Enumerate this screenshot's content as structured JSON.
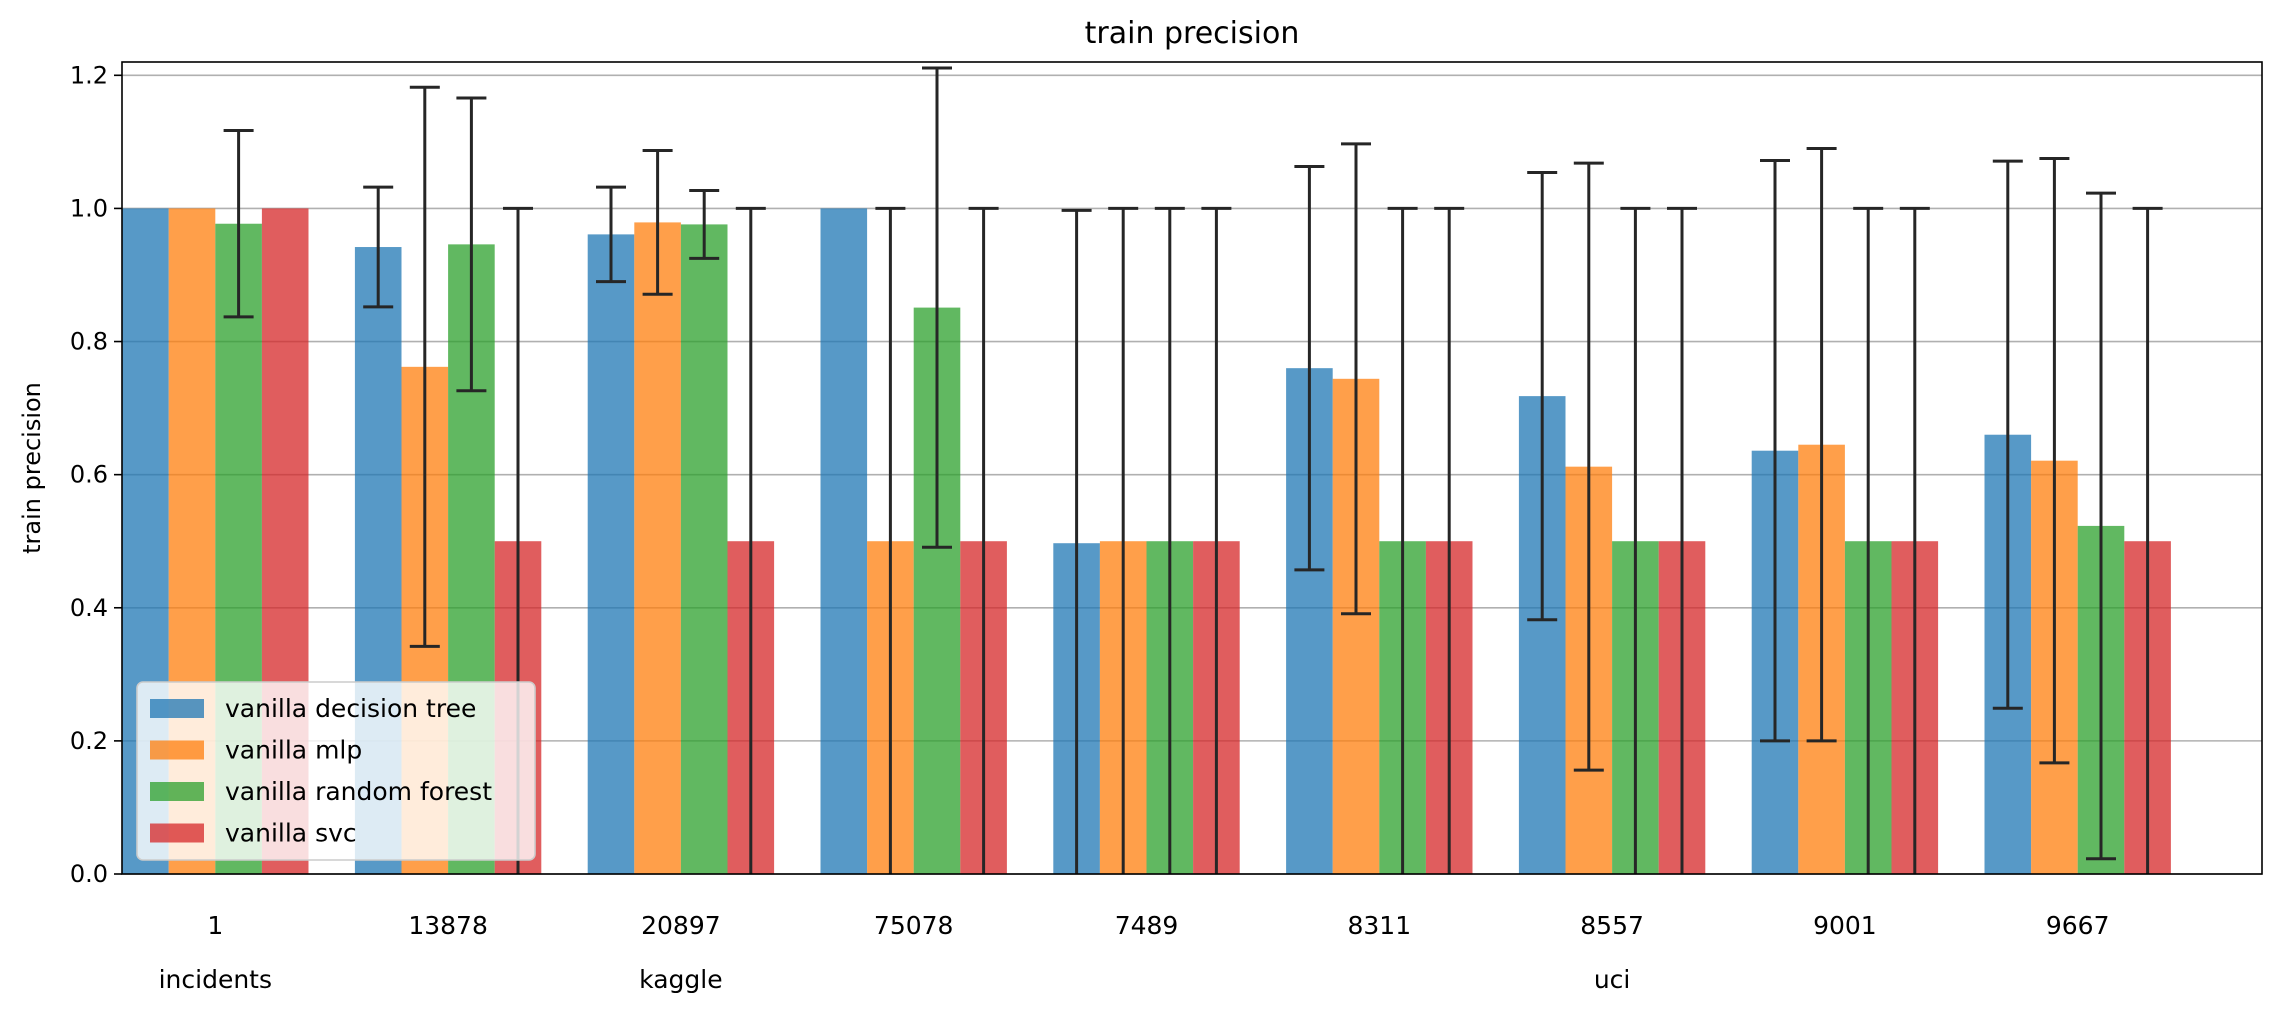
{
  "chart_data": {
    "type": "bar",
    "title": "train precision",
    "ylabel": "train precision",
    "xlabel": "",
    "ylim": [
      0,
      1.22
    ],
    "yticks": [
      "0.0",
      "0.2",
      "0.4",
      "0.6",
      "0.8",
      "1.0",
      "1.2"
    ],
    "grid": "y",
    "legend_position": "lower-left",
    "categories": [
      "1",
      "13878",
      "20897",
      "75078",
      "7489",
      "8311",
      "8557",
      "9001",
      "9667"
    ],
    "groups": [
      {
        "label": "incidents",
        "categories": [
          "1"
        ]
      },
      {
        "label": "kaggle",
        "categories": [
          "13878",
          "20897",
          "75078"
        ]
      },
      {
        "label": "uci",
        "categories": [
          "7489",
          "8311",
          "8557",
          "9001",
          "9667"
        ]
      }
    ],
    "series": [
      {
        "name": "vanilla decision tree",
        "color": "#1f77b4",
        "values": [
          1.0,
          0.942,
          0.961,
          1.0,
          0.497,
          0.76,
          0.718,
          0.636,
          0.66
        ],
        "errors": [
          null,
          0.09,
          0.071,
          null,
          0.5,
          0.303,
          0.336,
          0.436,
          0.411
        ]
      },
      {
        "name": "vanilla mlp",
        "color": "#ff7f0e",
        "values": [
          1.0,
          0.762,
          0.979,
          0.5,
          0.5,
          0.744,
          0.612,
          0.645,
          0.621
        ],
        "errors": [
          null,
          0.42,
          0.108,
          0.5,
          0.5,
          0.353,
          0.456,
          0.445,
          0.454
        ]
      },
      {
        "name": "vanilla random forest",
        "color": "#2ca02c",
        "values": [
          0.977,
          0.946,
          0.976,
          0.851,
          0.5,
          0.5,
          0.5,
          0.5,
          0.523
        ],
        "errors": [
          0.14,
          0.22,
          0.051,
          0.36,
          0.5,
          0.5,
          0.5,
          0.5,
          0.5
        ]
      },
      {
        "name": "vanilla svc",
        "color": "#d62728",
        "values": [
          1.0,
          0.5,
          0.5,
          0.5,
          0.5,
          0.5,
          0.5,
          0.5,
          0.5
        ],
        "errors": [
          null,
          0.5,
          0.5,
          0.5,
          0.5,
          0.5,
          0.5,
          0.5,
          0.5
        ]
      }
    ]
  }
}
